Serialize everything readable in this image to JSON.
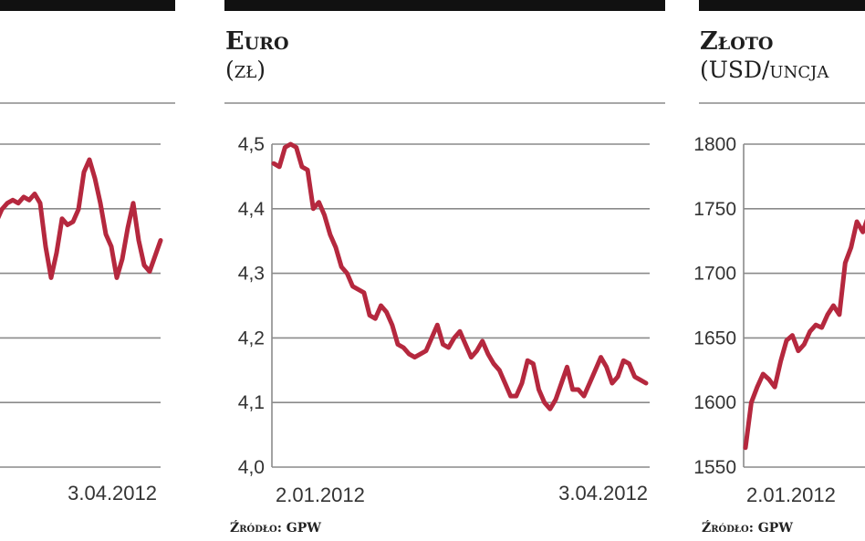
{
  "colors": {
    "line": "#b5283e",
    "grid": "#8a8a8a",
    "header_bar": "#111111"
  },
  "chart_data": [
    {
      "type": "line",
      "title": "",
      "subtitle": "",
      "x_tick_labels": [
        "",
        "3.04.2012"
      ],
      "y_ticks": [],
      "ylim": [
        3.995,
        4.515
      ],
      "source": "",
      "grid": true,
      "values": [
        4.4,
        4.39,
        4.41,
        4.42,
        4.425,
        4.42,
        4.43,
        4.425,
        4.435,
        4.42,
        4.35,
        4.3,
        4.34,
        4.395,
        4.385,
        4.39,
        4.41,
        4.47,
        4.49,
        4.46,
        4.42,
        4.37,
        4.35,
        4.3,
        4.33,
        4.38,
        4.42,
        4.36,
        4.32,
        4.31,
        4.335,
        4.36
      ]
    },
    {
      "type": "line",
      "title": "Euro",
      "subtitle": "(zł)",
      "x_tick_labels": [
        "2.01.2012",
        "3.04.2012"
      ],
      "y_ticks": [
        "4,0",
        "4,1",
        "4,2",
        "4,3",
        "4,4",
        "4,5"
      ],
      "ylim": [
        4.0,
        4.5
      ],
      "source": "Źródło: GPW",
      "grid": true,
      "values": [
        4.47,
        4.465,
        4.495,
        4.5,
        4.495,
        4.465,
        4.46,
        4.4,
        4.41,
        4.39,
        4.36,
        4.34,
        4.31,
        4.3,
        4.28,
        4.275,
        4.27,
        4.235,
        4.23,
        4.25,
        4.24,
        4.22,
        4.19,
        4.185,
        4.175,
        4.17,
        4.175,
        4.18,
        4.2,
        4.22,
        4.19,
        4.185,
        4.2,
        4.21,
        4.19,
        4.17,
        4.18,
        4.195,
        4.175,
        4.16,
        4.15,
        4.13,
        4.11,
        4.11,
        4.13,
        4.165,
        4.16,
        4.12,
        4.1,
        4.09,
        4.105,
        4.13,
        4.155,
        4.12,
        4.12,
        4.11,
        4.13,
        4.15,
        4.17,
        4.155,
        4.13,
        4.14,
        4.165,
        4.16,
        4.14,
        4.135,
        4.13
      ]
    },
    {
      "type": "line",
      "title": "Złoto",
      "subtitle": "(USD/uncja",
      "x_tick_labels": [
        "2.01.2012"
      ],
      "y_ticks": [
        "1550",
        "1600",
        "1650",
        "1700",
        "1750",
        "1800"
      ],
      "ylim": [
        1550,
        1800
      ],
      "source": "Źródło: GPW",
      "grid": true,
      "values": [
        1565,
        1600,
        1612,
        1622,
        1618,
        1612,
        1632,
        1648,
        1652,
        1640,
        1645,
        1655,
        1660,
        1658,
        1668,
        1675,
        1668,
        1708,
        1720,
        1740,
        1732,
        1745
      ]
    }
  ]
}
